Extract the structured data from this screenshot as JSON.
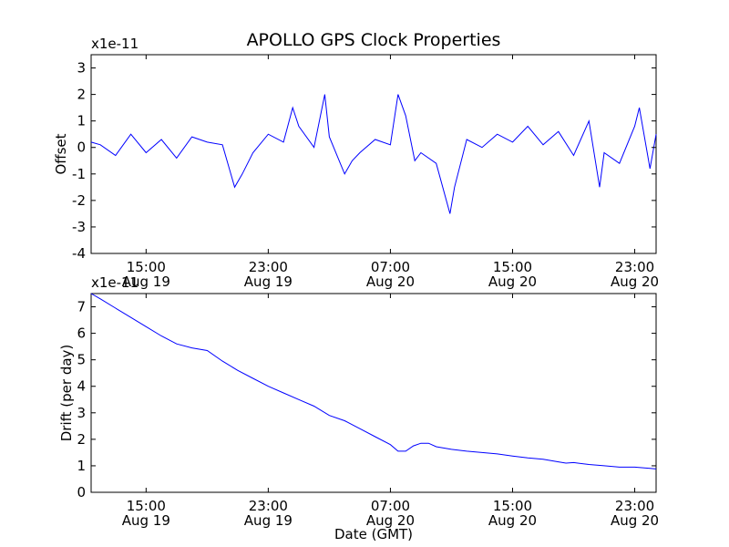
{
  "figure": {
    "title": "APOLLO GPS Clock Properties"
  },
  "chart_data": [
    {
      "type": "line",
      "title": "APOLLO GPS Clock Properties",
      "xlabel": "",
      "ylabel": "Offset",
      "scale_label": "x1e-11",
      "ylim": [
        -4,
        3.5
      ],
      "yticks": [
        -4,
        -3,
        -2,
        -1,
        0,
        1,
        2,
        3
      ],
      "xlim_hours": [
        11.4,
        48.4
      ],
      "xticks": [
        {
          "hour": 15,
          "time": "15:00",
          "date": "Aug 19"
        },
        {
          "hour": 23,
          "time": "23:00",
          "date": "Aug 19"
        },
        {
          "hour": 31,
          "time": "07:00",
          "date": "Aug 20"
        },
        {
          "hour": 39,
          "time": "15:00",
          "date": "Aug 20"
        },
        {
          "hour": 47,
          "time": "23:00",
          "date": "Aug 20"
        }
      ],
      "series": [
        {
          "name": "Offset",
          "color": "#0000ff",
          "x_hours": [
            11.4,
            12.0,
            13.0,
            14.0,
            15.0,
            16.0,
            17.0,
            18.0,
            19.0,
            20.0,
            20.8,
            21.3,
            22.0,
            23.0,
            24.0,
            24.6,
            25.0,
            26.0,
            26.7,
            27.0,
            28.0,
            28.5,
            29.0,
            30.0,
            31.0,
            31.5,
            32.0,
            32.6,
            33.0,
            34.0,
            34.9,
            35.2,
            36.0,
            37.0,
            38.0,
            39.0,
            40.0,
            41.0,
            42.0,
            43.0,
            44.0,
            44.7,
            45.0,
            46.0,
            47.0,
            47.3,
            48.0,
            48.4
          ],
          "values": [
            0.2,
            0.1,
            -0.3,
            0.5,
            -0.2,
            0.3,
            -0.4,
            0.4,
            0.2,
            0.1,
            -1.5,
            -1.0,
            -0.2,
            0.5,
            0.2,
            1.5,
            0.8,
            0.0,
            2.0,
            0.4,
            -1.0,
            -0.5,
            -0.2,
            0.3,
            0.1,
            2.0,
            1.2,
            -0.5,
            -0.2,
            -0.6,
            -2.5,
            -1.5,
            0.3,
            0.0,
            0.5,
            0.2,
            0.8,
            0.1,
            0.6,
            -0.3,
            1.0,
            -1.5,
            -0.2,
            -0.6,
            0.8,
            1.5,
            -0.8,
            0.5
          ]
        }
      ]
    },
    {
      "type": "line",
      "title": "",
      "xlabel": "Date (GMT)",
      "ylabel": "Drift (per day)",
      "scale_label": "x1e-11",
      "ylim": [
        0,
        7.5
      ],
      "yticks": [
        0,
        1,
        2,
        3,
        4,
        5,
        6,
        7
      ],
      "xlim_hours": [
        11.4,
        48.4
      ],
      "xticks": [
        {
          "hour": 15,
          "time": "15:00",
          "date": "Aug 19"
        },
        {
          "hour": 23,
          "time": "23:00",
          "date": "Aug 19"
        },
        {
          "hour": 31,
          "time": "07:00",
          "date": "Aug 20"
        },
        {
          "hour": 39,
          "time": "15:00",
          "date": "Aug 20"
        },
        {
          "hour": 47,
          "time": "23:00",
          "date": "Aug 20"
        }
      ],
      "series": [
        {
          "name": "Drift",
          "color": "#0000ff",
          "x_hours": [
            11.4,
            12.0,
            13.0,
            14.0,
            15.0,
            16.0,
            17.0,
            18.0,
            19.0,
            20.0,
            21.0,
            22.0,
            23.0,
            24.0,
            25.0,
            26.0,
            27.0,
            28.0,
            29.0,
            30.0,
            31.0,
            31.5,
            32.0,
            32.5,
            33.0,
            33.5,
            34.0,
            35.0,
            36.0,
            37.0,
            38.0,
            39.0,
            40.0,
            41.0,
            42.0,
            42.5,
            43.0,
            44.0,
            45.0,
            46.0,
            47.0,
            48.0,
            48.4
          ],
          "values": [
            7.5,
            7.3,
            6.95,
            6.6,
            6.25,
            5.9,
            5.6,
            5.45,
            5.35,
            4.95,
            4.6,
            4.3,
            4.0,
            3.75,
            3.5,
            3.25,
            2.9,
            2.7,
            2.4,
            2.1,
            1.8,
            1.55,
            1.55,
            1.75,
            1.85,
            1.85,
            1.72,
            1.62,
            1.55,
            1.5,
            1.45,
            1.37,
            1.3,
            1.25,
            1.15,
            1.1,
            1.12,
            1.05,
            1.0,
            0.95,
            0.95,
            0.9,
            0.88
          ]
        }
      ]
    }
  ]
}
